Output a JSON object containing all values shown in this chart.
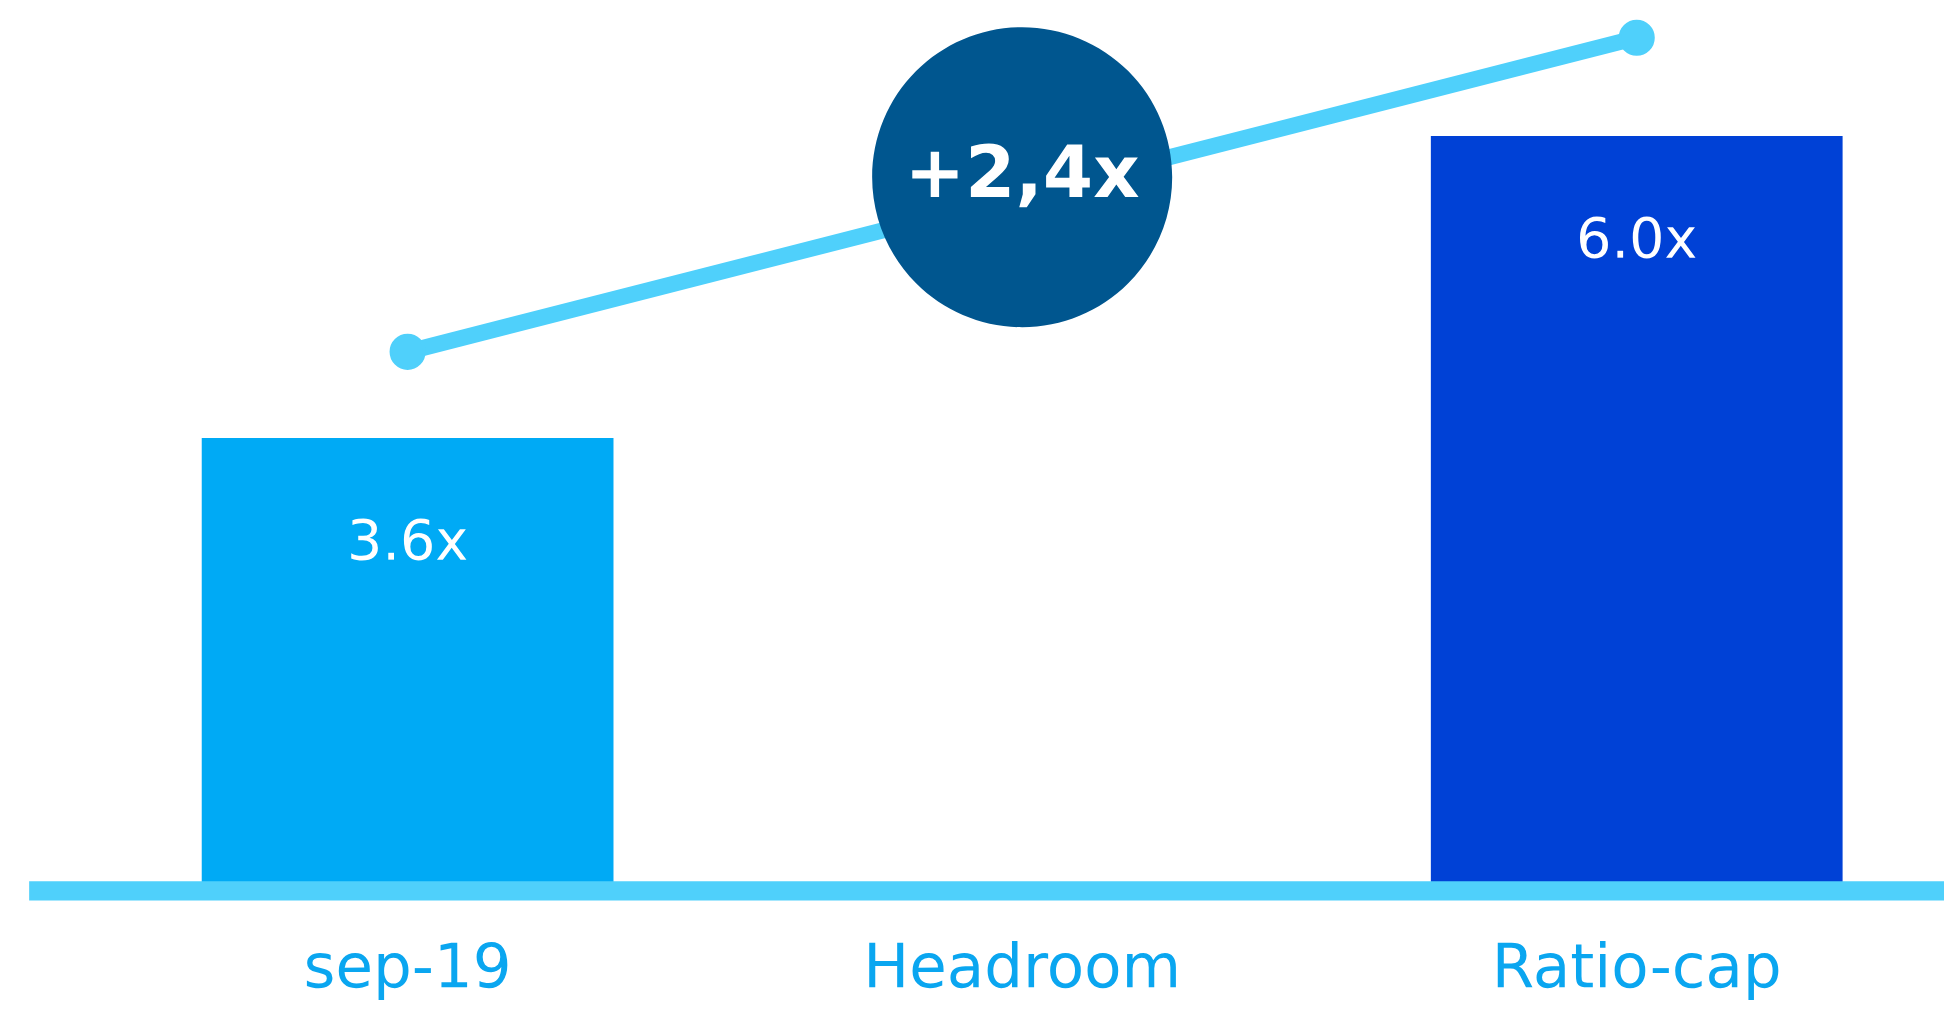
{
  "chart_data": {
    "type": "bar",
    "categories": [
      "sep-19",
      "Headroom",
      "Ratio-cap"
    ],
    "values": [
      3.6,
      null,
      6.0
    ],
    "colors": [
      "#00aaf5",
      null,
      "#0041d6"
    ],
    "value_labels": [
      "3.6x",
      null,
      "6.0x"
    ],
    "annotations": [
      "+2,4x"
    ],
    "grid": false,
    "legend": false
  }
}
